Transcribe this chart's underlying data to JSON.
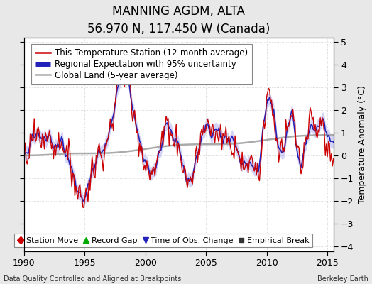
{
  "title": "MANNING AGDM, ALTA",
  "subtitle": "56.970 N, 117.450 W (Canada)",
  "xlabel_bottom_left": "Data Quality Controlled and Aligned at Breakpoints",
  "xlabel_bottom_right": "Berkeley Earth",
  "ylabel": "Temperature Anomaly (°C)",
  "xlim": [
    1990,
    2015.5
  ],
  "ylim": [
    -4.2,
    5.2
  ],
  "yticks": [
    -4,
    -3,
    -2,
    -1,
    0,
    1,
    2,
    3,
    4,
    5
  ],
  "xticks": [
    1990,
    1995,
    2000,
    2005,
    2010,
    2015
  ],
  "station_color": "#cc0000",
  "regional_color": "#2222bb",
  "regional_fill_color": "#aaaaee",
  "regional_fill_alpha": 0.5,
  "global_color": "#aaaaaa",
  "background_color": "#e8e8e8",
  "plot_bg_color": "#ffffff",
  "grid_color": "#cccccc",
  "grid_style": ":",
  "title_fontsize": 12,
  "subtitle_fontsize": 9,
  "axis_fontsize": 9,
  "legend_fontsize": 8.5
}
